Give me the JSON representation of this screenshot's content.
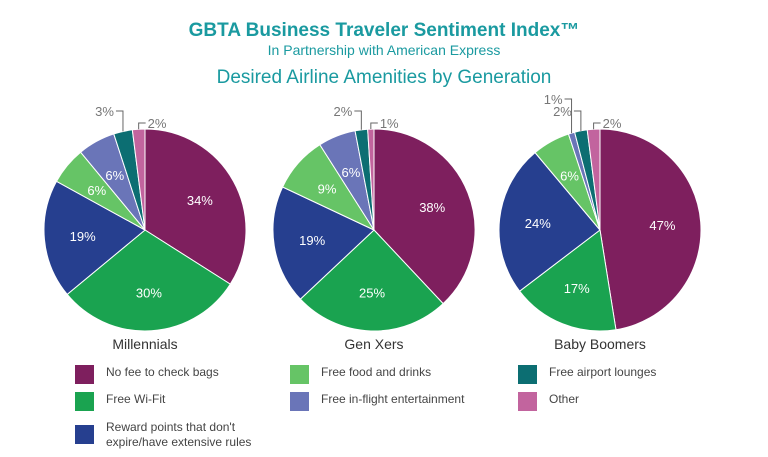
{
  "header": {
    "title": "GBTA Business Traveler Sentiment Index™",
    "subtitle": "In Partnership with American Express"
  },
  "chart_data": [
    {
      "type": "pie",
      "title": "Desired Airline Amenities by Generation",
      "label": "Millennials",
      "categories": [
        "No fee to check bags",
        "Free Wi-Fit",
        "Reward points that don't expire/have extensive rules",
        "Free food and drinks",
        "Free in-flight entertainment",
        "Free airport lounges",
        "Other"
      ],
      "values": [
        34,
        30,
        19,
        6,
        6,
        3,
        2
      ]
    },
    {
      "type": "pie",
      "label": "Gen Xers",
      "categories": [
        "No fee to check bags",
        "Free Wi-Fit",
        "Reward points that don't expire/have extensive rules",
        "Free food and drinks",
        "Free in-flight entertainment",
        "Free airport lounges",
        "Other"
      ],
      "values": [
        38,
        25,
        19,
        9,
        6,
        2,
        1
      ]
    },
    {
      "type": "pie",
      "label": "Baby Boomers",
      "categories": [
        "No fee to check bags",
        "Free Wi-Fit",
        "Reward points that don't expire/have extensive rules",
        "Free food and drinks",
        "Free in-flight entertainment",
        "Free airport lounges",
        "Other"
      ],
      "values": [
        47,
        17,
        24,
        6,
        1,
        2,
        2
      ]
    }
  ],
  "legend": [
    {
      "label": "No fee to check bags",
      "color": "#7e1f5e"
    },
    {
      "label": "Free Wi-Fit",
      "color": "#1aa350"
    },
    {
      "label": "Reward points that don't expire/have extensive rules",
      "color": "#263f8f"
    },
    {
      "label": "Free food and drinks",
      "color": "#66c466"
    },
    {
      "label": "Free in-flight entertainment",
      "color": "#6a75b8"
    },
    {
      "label": "Free airport lounges",
      "color": "#0c6e72"
    },
    {
      "label": "Other",
      "color": "#c2649e"
    }
  ]
}
